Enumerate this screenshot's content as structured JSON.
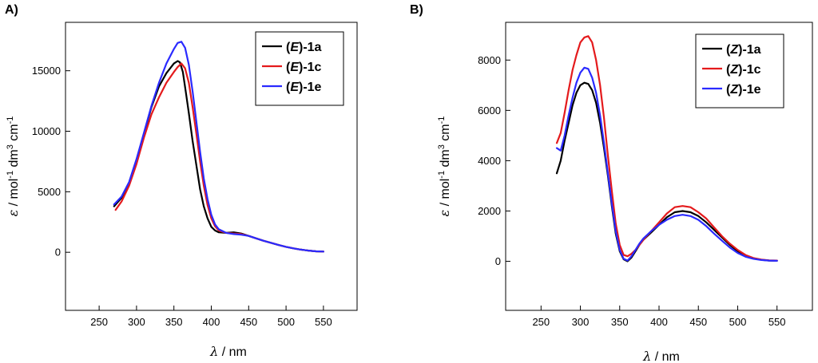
{
  "chart_data": [
    {
      "type": "line",
      "panel_label": "A)",
      "title": "",
      "xlabel_symbol": "λ",
      "xlabel_unit": " / nm",
      "ylabel_symbol": "ε",
      "ylabel_unit": " / mol",
      "ylabel_part2": " dm",
      "ylabel_part3": " cm",
      "ylabel_sup1": "-1",
      "ylabel_sup2": "3",
      "ylabel_sup3": "-1",
      "xlim": [
        205,
        595
      ],
      "ylim": [
        -4800,
        19000
      ],
      "xticks": [
        250,
        300,
        350,
        400,
        450,
        500,
        550
      ],
      "yticks": [
        0,
        5000,
        10000,
        15000
      ],
      "grid": false,
      "legend_position": "top-right",
      "series": [
        {
          "name": "(E)-1a",
          "name_parts": [
            "(",
            "E",
            ")-1a"
          ],
          "color": "#000000",
          "x": [
            270,
            280,
            290,
            300,
            310,
            320,
            330,
            340,
            350,
            355,
            358,
            362,
            366,
            370,
            375,
            380,
            385,
            390,
            395,
            400,
            405,
            410,
            420,
            430,
            440,
            450,
            460,
            470,
            480,
            490,
            500,
            510,
            520,
            530,
            540,
            550
          ],
          "y": [
            3800,
            4500,
            5700,
            7600,
            9800,
            12000,
            13700,
            14800,
            15600,
            15800,
            15700,
            14900,
            13200,
            11500,
            9200,
            7200,
            5200,
            3800,
            2800,
            2100,
            1800,
            1650,
            1600,
            1650,
            1550,
            1350,
            1150,
            950,
            780,
            600,
            450,
            320,
            220,
            140,
            80,
            60
          ]
        },
        {
          "name": "(E)-1c",
          "name_parts": [
            "(",
            "E",
            ")-1c"
          ],
          "color": "#e41a1c",
          "x": [
            272,
            280,
            290,
            300,
            310,
            320,
            330,
            340,
            350,
            355,
            360,
            365,
            370,
            375,
            380,
            385,
            390,
            395,
            400,
            405,
            410,
            420,
            430,
            440,
            450,
            460,
            470,
            480,
            490,
            500,
            510,
            520,
            530,
            540,
            550
          ],
          "y": [
            3500,
            4200,
            5500,
            7300,
            9500,
            11400,
            12800,
            14000,
            14900,
            15300,
            15600,
            15200,
            14000,
            12000,
            9800,
            7500,
            5500,
            3900,
            2800,
            2150,
            1800,
            1600,
            1550,
            1500,
            1350,
            1150,
            950,
            780,
            600,
            450,
            320,
            220,
            140,
            80,
            60
          ]
        },
        {
          "name": "(E)-1e",
          "name_parts": [
            "(",
            "E",
            ")-1e"
          ],
          "color": "#2a2aff",
          "x": [
            270,
            280,
            290,
            300,
            310,
            320,
            330,
            340,
            350,
            355,
            360,
            365,
            370,
            375,
            380,
            385,
            390,
            395,
            400,
            405,
            410,
            420,
            430,
            440,
            450,
            460,
            470,
            480,
            490,
            500,
            510,
            520,
            530,
            540,
            550
          ],
          "y": [
            3950,
            4600,
            5800,
            7700,
            9900,
            12100,
            14000,
            15600,
            16800,
            17300,
            17400,
            16900,
            15500,
            13300,
            10800,
            8300,
            6100,
            4400,
            3100,
            2300,
            1900,
            1600,
            1500,
            1450,
            1350,
            1150,
            950,
            780,
            600,
            450,
            320,
            220,
            140,
            80,
            60
          ]
        }
      ]
    },
    {
      "type": "line",
      "panel_label": "B)",
      "title": "",
      "xlabel_symbol": "λ",
      "xlabel_unit": " / nm",
      "ylabel_symbol": "ε",
      "ylabel_unit": " / mol",
      "ylabel_part2": " dm",
      "ylabel_part3": " cm",
      "ylabel_sup1": "-1",
      "ylabel_sup2": "3",
      "ylabel_sup3": "-1",
      "xlim": [
        205,
        595
      ],
      "ylim": [
        -1950,
        9500
      ],
      "xticks": [
        250,
        300,
        350,
        400,
        450,
        500,
        550
      ],
      "yticks": [
        0,
        2000,
        4000,
        6000,
        8000
      ],
      "grid": false,
      "legend_position": "top-right",
      "series": [
        {
          "name": "(Z)-1a",
          "name_parts": [
            "(",
            "Z",
            ")-1a"
          ],
          "color": "#000000",
          "x": [
            270,
            275,
            280,
            285,
            290,
            295,
            300,
            305,
            310,
            315,
            320,
            325,
            330,
            335,
            340,
            345,
            350,
            355,
            360,
            365,
            370,
            375,
            380,
            390,
            400,
            410,
            420,
            430,
            440,
            450,
            460,
            470,
            480,
            490,
            500,
            510,
            520,
            530,
            540,
            550
          ],
          "y": [
            3500,
            4000,
            4800,
            5500,
            6200,
            6700,
            7000,
            7100,
            7050,
            6800,
            6300,
            5500,
            4500,
            3400,
            2200,
            1100,
            400,
            80,
            0,
            150,
            400,
            650,
            850,
            1150,
            1450,
            1750,
            1950,
            2000,
            1950,
            1800,
            1550,
            1250,
            950,
            650,
            400,
            220,
            120,
            60,
            30,
            20
          ]
        },
        {
          "name": "(Z)-1c",
          "name_parts": [
            "(",
            "Z",
            ")-1c"
          ],
          "color": "#e41a1c",
          "x": [
            270,
            275,
            280,
            285,
            290,
            295,
            300,
            305,
            310,
            315,
            320,
            325,
            330,
            335,
            340,
            345,
            350,
            355,
            360,
            365,
            370,
            375,
            380,
            390,
            400,
            410,
            420,
            430,
            440,
            450,
            460,
            470,
            480,
            490,
            500,
            510,
            520,
            530,
            540,
            550
          ],
          "y": [
            4700,
            5100,
            5900,
            6800,
            7600,
            8200,
            8700,
            8900,
            8950,
            8700,
            8000,
            7000,
            5700,
            4200,
            2800,
            1500,
            650,
            250,
            200,
            300,
            450,
            650,
            850,
            1200,
            1550,
            1900,
            2150,
            2200,
            2150,
            1950,
            1700,
            1350,
            1000,
            700,
            450,
            250,
            130,
            70,
            40,
            30
          ]
        },
        {
          "name": "(Z)-1e",
          "name_parts": [
            "(",
            "Z",
            ")-1e"
          ],
          "color": "#2a2aff",
          "x": [
            270,
            275,
            280,
            285,
            290,
            295,
            300,
            305,
            310,
            315,
            320,
            325,
            330,
            335,
            340,
            345,
            350,
            355,
            360,
            365,
            370,
            375,
            380,
            390,
            400,
            410,
            420,
            430,
            440,
            450,
            460,
            470,
            480,
            490,
            500,
            510,
            520,
            530,
            540,
            550
          ],
          "y": [
            4500,
            4400,
            5000,
            5800,
            6500,
            7100,
            7500,
            7700,
            7650,
            7300,
            6700,
            5800,
            4700,
            3500,
            2300,
            1200,
            450,
            100,
            30,
            200,
            450,
            700,
            900,
            1200,
            1450,
            1650,
            1800,
            1850,
            1800,
            1650,
            1400,
            1100,
            820,
            550,
            330,
            180,
            100,
            50,
            30,
            20
          ]
        }
      ]
    }
  ]
}
